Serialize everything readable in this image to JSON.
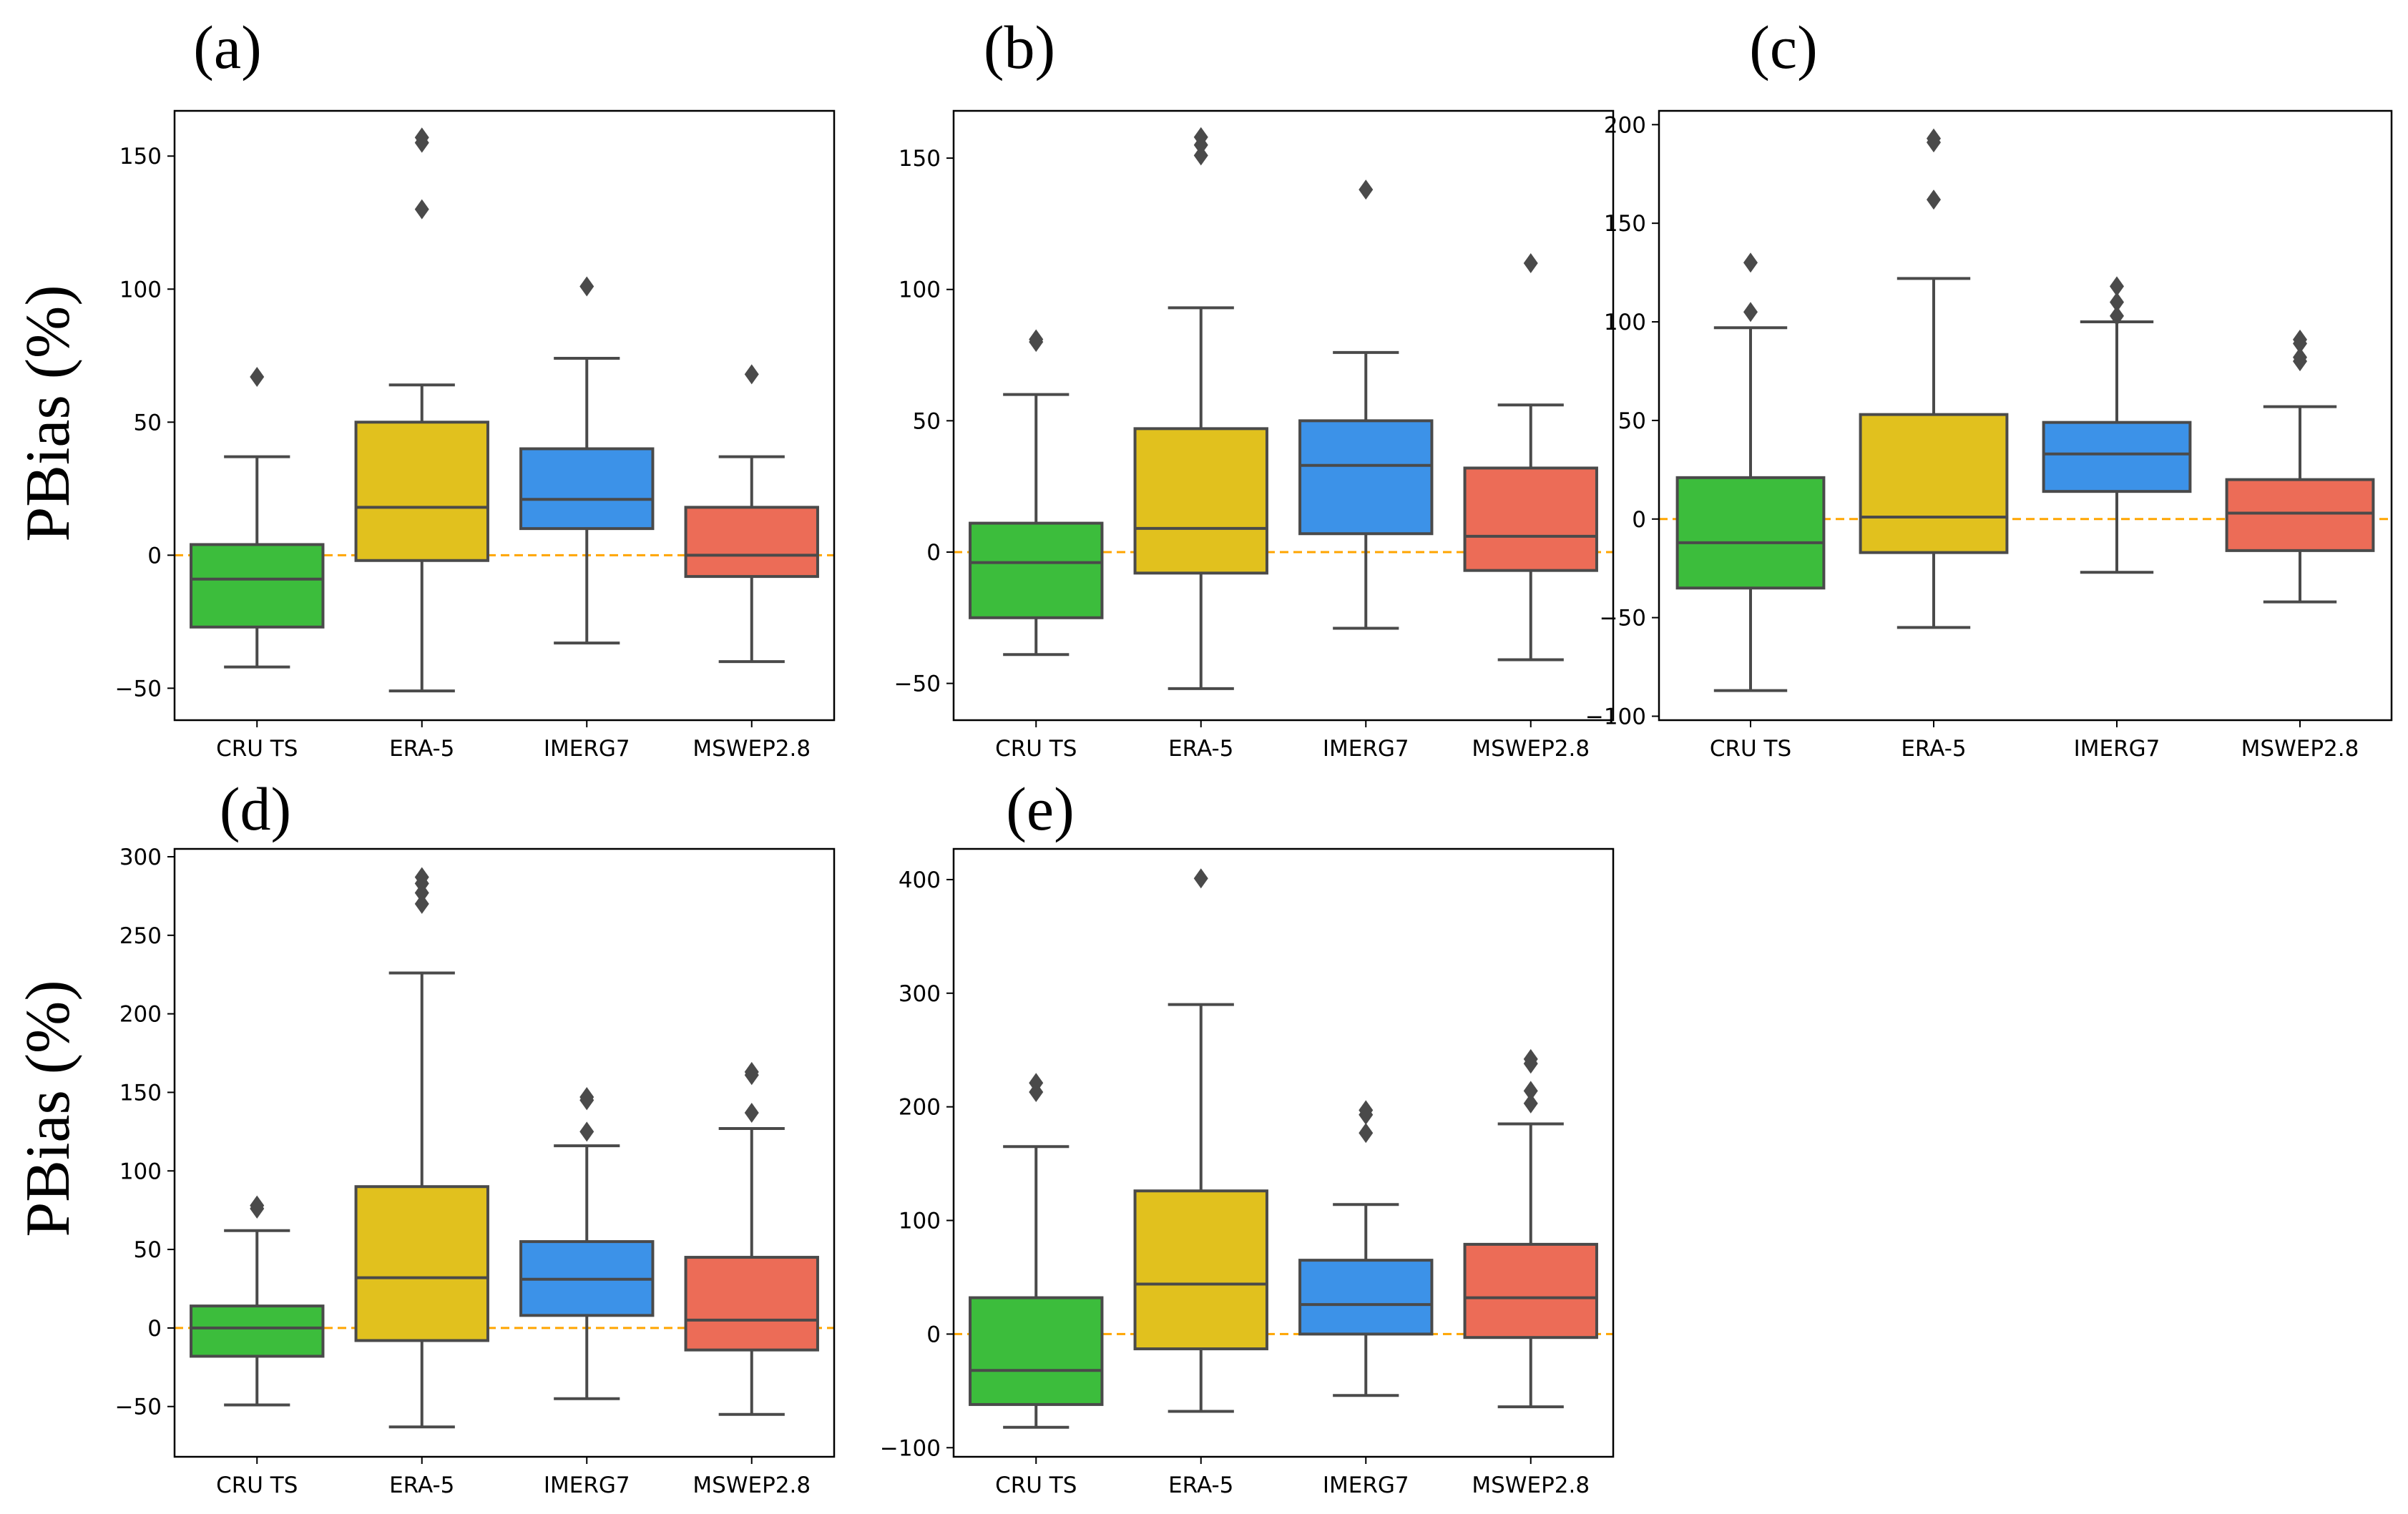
{
  "colors": {
    "CRU TS": "#3cbd3c",
    "ERA-5": "#e1c11e",
    "IMERG7": "#3c92e8",
    "MSWEP2.8": "#ec6c57",
    "line": "#4a4a4a",
    "zero_line": "#ffa500"
  },
  "ylabel": "PBias (%)",
  "chart_data": [
    {
      "type": "box",
      "letter": "(a)",
      "categories": [
        "CRU TS",
        "ERA-5",
        "IMERG7",
        "MSWEP2.8"
      ],
      "ylim": [
        -62,
        167
      ],
      "yticks": [
        -50,
        0,
        50,
        100,
        150
      ],
      "series": [
        {
          "name": "CRU TS",
          "whisker_low": -42,
          "q1": -27,
          "median": -9,
          "q3": 4,
          "whisker_high": 37,
          "outliers": [
            67
          ]
        },
        {
          "name": "ERA-5",
          "whisker_low": -51,
          "q1": -2,
          "median": 18,
          "q3": 50,
          "whisker_high": 64,
          "outliers": [
            130,
            155,
            157
          ]
        },
        {
          "name": "IMERG7",
          "whisker_low": -33,
          "q1": 10,
          "median": 21,
          "q3": 40,
          "whisker_high": 74,
          "outliers": [
            101
          ]
        },
        {
          "name": "MSWEP2.8",
          "whisker_low": -40,
          "q1": -8,
          "median": 0,
          "q3": 18,
          "whisker_high": 37,
          "outliers": [
            68
          ]
        }
      ]
    },
    {
      "type": "box",
      "letter": "(b)",
      "categories": [
        "CRU TS",
        "ERA-5",
        "IMERG7",
        "MSWEP2.8"
      ],
      "ylim": [
        -64,
        168
      ],
      "yticks": [
        -50,
        0,
        50,
        100,
        150
      ],
      "series": [
        {
          "name": "CRU TS",
          "whisker_low": -39,
          "q1": -25,
          "median": -4,
          "q3": 11,
          "whisker_high": 60,
          "outliers": [
            80,
            81
          ]
        },
        {
          "name": "ERA-5",
          "whisker_low": -52,
          "q1": -8,
          "median": 9,
          "q3": 47,
          "whisker_high": 93,
          "outliers": [
            151,
            155,
            158
          ]
        },
        {
          "name": "IMERG7",
          "whisker_low": -29,
          "q1": 7,
          "median": 33,
          "q3": 50,
          "whisker_high": 76,
          "outliers": [
            138
          ]
        },
        {
          "name": "MSWEP2.8",
          "whisker_low": -41,
          "q1": -7,
          "median": 6,
          "q3": 32,
          "whisker_high": 56,
          "outliers": [
            110
          ]
        }
      ]
    },
    {
      "type": "box",
      "letter": "(c)",
      "categories": [
        "CRU TS",
        "ERA-5",
        "IMERG7",
        "MSWEP2.8"
      ],
      "ylim": [
        -102,
        207
      ],
      "yticks": [
        -100,
        -50,
        0,
        50,
        100,
        150,
        200
      ],
      "series": [
        {
          "name": "CRU TS",
          "whisker_low": -87,
          "q1": -35,
          "median": -12,
          "q3": 21,
          "whisker_high": 97,
          "outliers": [
            105,
            130
          ]
        },
        {
          "name": "ERA-5",
          "whisker_low": -55,
          "q1": -17,
          "median": 1,
          "q3": 53,
          "whisker_high": 122,
          "outliers": [
            162,
            191,
            193
          ]
        },
        {
          "name": "IMERG7",
          "whisker_low": -27,
          "q1": 14,
          "median": 33,
          "q3": 49,
          "whisker_high": 100,
          "outliers": [
            103,
            110,
            118
          ]
        },
        {
          "name": "MSWEP2.8",
          "whisker_low": -42,
          "q1": -16,
          "median": 3,
          "q3": 20,
          "whisker_high": 57,
          "outliers": [
            80,
            82,
            89,
            91
          ]
        }
      ]
    },
    {
      "type": "box",
      "letter": "(d)",
      "categories": [
        "CRU TS",
        "ERA-5",
        "IMERG7",
        "MSWEP2.8"
      ],
      "ylim": [
        -82,
        305
      ],
      "yticks": [
        -50,
        0,
        50,
        100,
        150,
        200,
        250,
        300
      ],
      "series": [
        {
          "name": "CRU TS",
          "whisker_low": -49,
          "q1": -18,
          "median": 0,
          "q3": 14,
          "whisker_high": 62,
          "outliers": [
            76,
            78
          ]
        },
        {
          "name": "ERA-5",
          "whisker_low": -63,
          "q1": -8,
          "median": 32,
          "q3": 90,
          "whisker_high": 226,
          "outliers": [
            270,
            277,
            283,
            287
          ]
        },
        {
          "name": "IMERG7",
          "whisker_low": -45,
          "q1": 8,
          "median": 31,
          "q3": 55,
          "whisker_high": 116,
          "outliers": [
            125,
            145,
            147
          ]
        },
        {
          "name": "MSWEP2.8",
          "whisker_low": -55,
          "q1": -14,
          "median": 5,
          "q3": 45,
          "whisker_high": 127,
          "outliers": [
            137,
            161,
            163
          ]
        }
      ]
    },
    {
      "type": "box",
      "letter": "(e)",
      "categories": [
        "CRU TS",
        "ERA-5",
        "IMERG7",
        "MSWEP2.8"
      ],
      "ylim": [
        -108,
        427
      ],
      "yticks": [
        -100,
        0,
        100,
        200,
        300,
        400
      ],
      "series": [
        {
          "name": "CRU TS",
          "whisker_low": -82,
          "q1": -62,
          "median": -32,
          "q3": 32,
          "whisker_high": 165,
          "outliers": [
            213,
            221
          ]
        },
        {
          "name": "ERA-5",
          "whisker_low": -68,
          "q1": -13,
          "median": 44,
          "q3": 126,
          "whisker_high": 290,
          "outliers": [
            401
          ]
        },
        {
          "name": "IMERG7",
          "whisker_low": -54,
          "q1": 0,
          "median": 26,
          "q3": 65,
          "whisker_high": 114,
          "outliers": [
            177,
            193,
            197
          ]
        },
        {
          "name": "MSWEP2.8",
          "whisker_low": -64,
          "q1": -3,
          "median": 32,
          "q3": 79,
          "whisker_high": 185,
          "outliers": [
            203,
            214,
            238,
            242
          ]
        }
      ]
    }
  ]
}
